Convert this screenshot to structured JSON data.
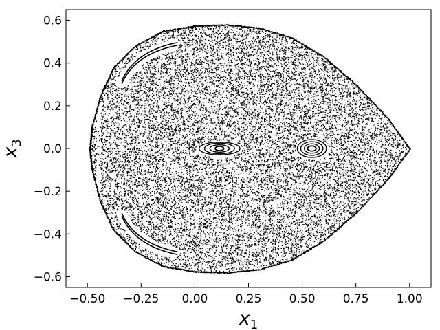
{
  "chart_data": {
    "type": "scatter",
    "title": "",
    "xlabel": "x",
    "xlabel_sub": "1",
    "ylabel": "x",
    "ylabel_sub": "3",
    "xlim": [
      -0.6,
      1.1
    ],
    "ylim": [
      -0.65,
      0.65
    ],
    "xticks": [
      -0.5,
      -0.25,
      0.0,
      0.25,
      0.5,
      0.75,
      1.0
    ],
    "xtick_labels": [
      "−0.50",
      "−0.25",
      "0.00",
      "0.25",
      "0.50",
      "0.75",
      "1.00"
    ],
    "yticks": [
      -0.6,
      -0.4,
      -0.2,
      0.0,
      0.2,
      0.4,
      0.6
    ],
    "ytick_labels": [
      "−0.6",
      "−0.4",
      "−0.2",
      "0.0",
      "0.2",
      "0.4",
      "0.6"
    ],
    "ticks_direction": "in",
    "grid": false,
    "legend": "none",
    "marker_color": "#000000",
    "series": [
      {
        "kind": "chaotic-sea",
        "boundary": [
          [
            1.0,
            0.0
          ],
          [
            0.9,
            0.14
          ],
          [
            0.75,
            0.3
          ],
          [
            0.6,
            0.43
          ],
          [
            0.45,
            0.52
          ],
          [
            0.3,
            0.565
          ],
          [
            0.15,
            0.58
          ],
          [
            0.0,
            0.575
          ],
          [
            -0.15,
            0.55
          ],
          [
            -0.28,
            0.48
          ],
          [
            -0.38,
            0.38
          ],
          [
            -0.44,
            0.25
          ],
          [
            -0.48,
            0.1
          ],
          [
            -0.49,
            0.0
          ],
          [
            -0.48,
            -0.1
          ],
          [
            -0.44,
            -0.25
          ],
          [
            -0.38,
            -0.38
          ],
          [
            -0.28,
            -0.48
          ],
          [
            -0.15,
            -0.55
          ],
          [
            0.0,
            -0.575
          ],
          [
            0.15,
            -0.58
          ],
          [
            0.3,
            -0.565
          ],
          [
            0.45,
            -0.52
          ],
          [
            0.6,
            -0.43
          ],
          [
            0.75,
            -0.3
          ],
          [
            0.9,
            -0.14
          ]
        ]
      },
      {
        "kind": "island",
        "center": [
          0.115,
          0.0
        ],
        "rx": [
          0.02,
          0.045,
          0.07,
          0.095
        ],
        "ry": [
          0.01,
          0.017,
          0.025,
          0.03
        ]
      },
      {
        "kind": "island",
        "center": [
          0.545,
          0.0
        ],
        "rx": [
          0.02,
          0.035,
          0.052,
          0.068
        ],
        "ry": [
          0.012,
          0.022,
          0.032,
          0.042
        ]
      },
      {
        "kind": "arc-island",
        "from": [
          -0.34,
          0.31
        ],
        "to": [
          -0.08,
          0.49
        ],
        "control": [
          -0.28,
          0.45
        ]
      },
      {
        "kind": "arc-island",
        "from": [
          -0.34,
          -0.31
        ],
        "to": [
          -0.08,
          -0.49
        ],
        "control": [
          -0.28,
          -0.45
        ]
      }
    ]
  }
}
